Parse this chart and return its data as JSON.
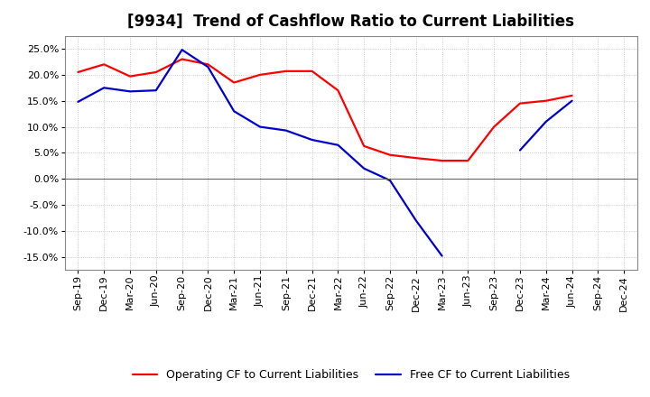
{
  "title": "[9934]  Trend of Cashflow Ratio to Current Liabilities",
  "x_labels": [
    "Sep-19",
    "Dec-19",
    "Mar-20",
    "Jun-20",
    "Sep-20",
    "Dec-20",
    "Mar-21",
    "Jun-21",
    "Sep-21",
    "Dec-21",
    "Mar-22",
    "Jun-22",
    "Sep-22",
    "Dec-22",
    "Mar-23",
    "Jun-23",
    "Sep-23",
    "Dec-23",
    "Mar-24",
    "Jun-24",
    "Sep-24",
    "Dec-24"
  ],
  "operating_cf": [
    0.205,
    0.22,
    0.197,
    0.205,
    0.23,
    0.22,
    0.185,
    0.2,
    0.207,
    0.207,
    0.17,
    0.063,
    0.046,
    0.04,
    0.035,
    0.035,
    0.1,
    0.145,
    0.15,
    0.16,
    null,
    null
  ],
  "free_cf": [
    0.148,
    0.175,
    0.168,
    0.17,
    0.248,
    0.215,
    0.13,
    0.1,
    0.093,
    0.075,
    0.065,
    0.02,
    -0.003,
    -0.08,
    -0.148,
    null,
    null,
    0.055,
    0.11,
    0.15,
    null,
    null
  ],
  "operating_color": "#ff0000",
  "free_color": "#0000cc",
  "ylim_low": -0.175,
  "ylim_high": 0.275,
  "yticks": [
    -0.15,
    -0.1,
    -0.05,
    0.0,
    0.05,
    0.1,
    0.15,
    0.2,
    0.25
  ],
  "bg_color": "#ffffff",
  "grid_color": "#bbbbbb",
  "legend_op": "Operating CF to Current Liabilities",
  "legend_free": "Free CF to Current Liabilities",
  "title_fontsize": 12,
  "tick_fontsize": 8,
  "legend_fontsize": 9
}
